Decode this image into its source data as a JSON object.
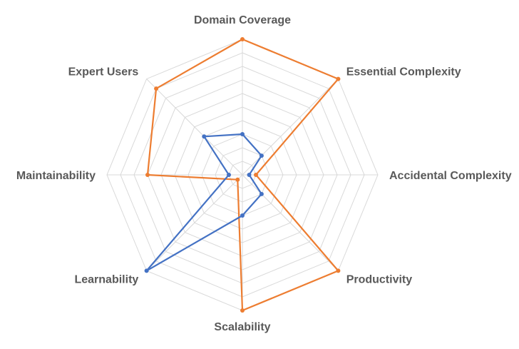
{
  "chart_data": {
    "type": "radar",
    "axes": [
      "Domain Coverage",
      "Essential Complexity",
      "Accidental Complexity",
      "Productivity",
      "Scalability",
      "Learnability",
      "Maintainability",
      "Expert Users"
    ],
    "rlim": [
      0,
      10
    ],
    "grid_rings": 10,
    "series": [
      {
        "color": "#ed7d31",
        "values": [
          10,
          10,
          1,
          10,
          10,
          0.5,
          7,
          9
        ]
      },
      {
        "color": "#4472c4",
        "values": [
          3,
          2,
          0.5,
          2,
          3,
          10,
          1,
          4
        ]
      }
    ]
  }
}
